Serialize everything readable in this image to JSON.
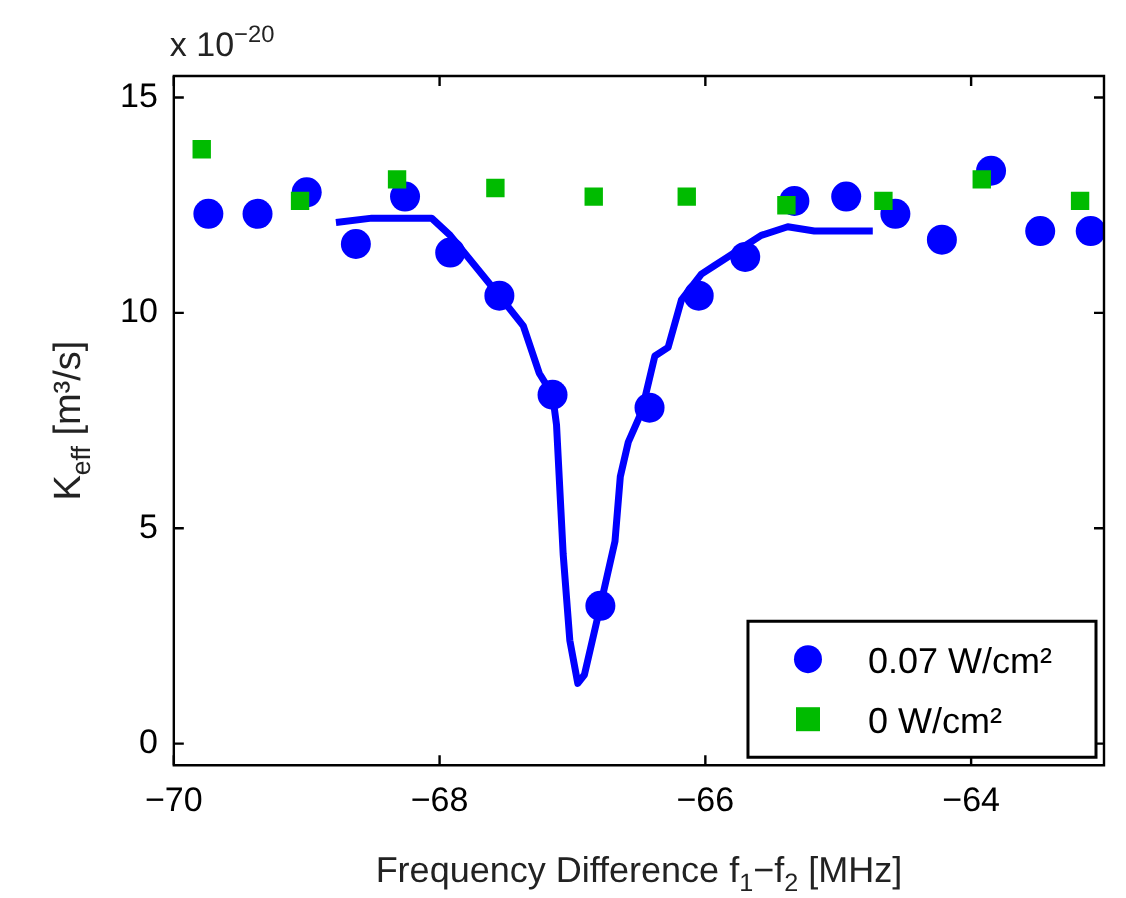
{
  "chart_data": {
    "type": "scatter",
    "xlabel": "Frequency Difference f$_{1}$−f$_{2}$ [MHz]",
    "ylabel": "K$_{eff}$ [m³/s]",
    "annotations": [
      "x 10$^{−20}$"
    ],
    "xlim": [
      -70,
      -63
    ],
    "ylim": [
      -0.5,
      15.5
    ],
    "xticks": [
      {
        "value": -70,
        "label": "−70"
      },
      {
        "value": -68,
        "label": "−68"
      },
      {
        "value": -66,
        "label": "−66"
      },
      {
        "value": -64,
        "label": "−64"
      }
    ],
    "yticks": [
      0,
      5,
      10,
      15
    ],
    "grid": false,
    "legend": "bottom right",
    "series": [
      {
        "name": "0.07 W/cm²",
        "marker": "circle",
        "color": "#0000ff",
        "x": [
          -69.74,
          -69.37,
          -69.0,
          -68.63,
          -68.26,
          -67.92,
          -67.55,
          -67.15,
          -66.79,
          -66.42,
          -66.05,
          -65.7,
          -65.33,
          -64.94,
          -64.57,
          -64.22,
          -63.85,
          -63.48,
          -63.1
        ],
        "values": [
          12.3,
          12.3,
          12.8,
          11.6,
          12.7,
          11.4,
          10.4,
          8.1,
          3.2,
          7.8,
          10.4,
          11.3,
          12.6,
          12.7,
          12.3,
          11.7,
          13.3,
          11.9,
          11.9
        ]
      },
      {
        "name": "0 W/cm²",
        "marker": "square",
        "color": "#00bb00",
        "x": [
          -69.79,
          -69.05,
          -68.32,
          -67.58,
          -66.84,
          -66.14,
          -65.39,
          -64.66,
          -63.92,
          -63.18
        ],
        "values": [
          13.8,
          12.6,
          13.1,
          12.9,
          12.7,
          12.7,
          12.5,
          12.6,
          13.1,
          12.6
        ]
      },
      {
        "type": "line",
        "marker": "none",
        "color": "#0000ff",
        "x": [
          -68.78,
          -68.51,
          -68.06,
          -67.92,
          -67.55,
          -67.37,
          -67.25,
          -67.15,
          -67.12,
          -67.07,
          -67.02,
          -66.96,
          -66.91,
          -66.79,
          -66.68,
          -66.64,
          -66.58,
          -66.48,
          -66.38,
          -66.28,
          -66.18,
          -66.03,
          -65.93,
          -65.73,
          -65.58,
          -65.38,
          -65.18,
          -64.98,
          -64.74
        ],
        "values": [
          12.1,
          12.2,
          12.2,
          11.8,
          10.4,
          9.7,
          8.6,
          8.1,
          7.4,
          4.4,
          2.4,
          1.4,
          1.6,
          3.2,
          4.7,
          6.2,
          7.0,
          7.7,
          9.0,
          9.2,
          10.3,
          10.9,
          11.1,
          11.5,
          11.8,
          12.0,
          11.9,
          11.9,
          11.9
        ]
      }
    ]
  }
}
